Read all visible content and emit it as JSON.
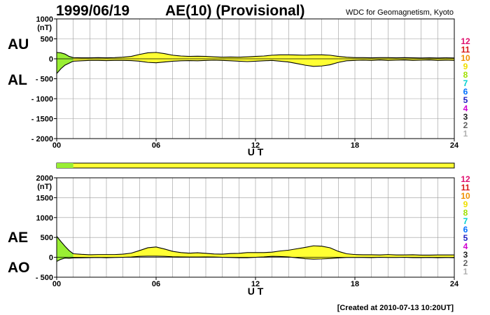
{
  "header": {
    "date": "1999/06/19",
    "title": "AE(10) (Provisional)",
    "organization": "WDC for Geomagnetism, Kyoto"
  },
  "footer": {
    "created": "[Created at 2010-07-13 10:20UT]"
  },
  "legend": {
    "numbers": [
      "12",
      "11",
      "10",
      "9",
      "8",
      "7",
      "6",
      "5",
      "4",
      "3",
      "2",
      "1"
    ],
    "colors": [
      "#e0106e",
      "#d81818",
      "#f09000",
      "#f0e000",
      "#a0e000",
      "#00d0d0",
      "#0070ff",
      "#2020c0",
      "#d000d0",
      "#202020",
      "#606060",
      "#b0b0b0"
    ]
  },
  "colors": {
    "fill": "#ffff33",
    "fill_early": "#99ee33",
    "station_bar": "#ffff33",
    "station_bar_early": "#99ee33",
    "grid": "#999999"
  },
  "station_bar": {
    "early_end_hour": 1
  },
  "chart_data": [
    {
      "type": "area",
      "name": "AU-AL",
      "unit": "(nT)",
      "labels": [
        "AU",
        "AL"
      ],
      "xlabel": "U T",
      "xlim": [
        0,
        24
      ],
      "ylim": [
        -2000,
        1000
      ],
      "yticks": [
        1000,
        500,
        0,
        -500,
        -1000,
        -1500,
        -2000
      ],
      "ytick_labels": [
        "1000",
        "500",
        "0",
        "- 500",
        "- 1000",
        "- 1500",
        "- 2000"
      ],
      "xticks": [
        0,
        6,
        12,
        18,
        24
      ],
      "xtick_labels": [
        "00",
        "06",
        "12",
        "18",
        "24"
      ],
      "grid": true,
      "x": [
        0,
        0.25,
        0.5,
        0.75,
        1,
        1.5,
        2,
        2.5,
        3,
        3.5,
        4,
        4.5,
        5,
        5.5,
        6,
        6.5,
        7,
        7.5,
        8,
        8.5,
        9,
        9.5,
        10,
        10.5,
        11,
        11.5,
        12,
        12.5,
        13,
        13.5,
        14,
        14.5,
        15,
        15.5,
        16,
        16.5,
        17,
        17.5,
        18,
        18.5,
        19,
        19.5,
        20,
        20.5,
        21,
        21.5,
        22,
        22.5,
        23,
        23.5,
        24
      ],
      "series": [
        {
          "name": "AU",
          "values": [
            160,
            150,
            120,
            60,
            30,
            25,
            25,
            30,
            25,
            30,
            40,
            60,
            110,
            150,
            160,
            130,
            90,
            70,
            60,
            65,
            60,
            50,
            40,
            45,
            40,
            50,
            60,
            70,
            90,
            100,
            100,
            95,
            90,
            100,
            100,
            90,
            60,
            40,
            30,
            30,
            25,
            30,
            30,
            25,
            30,
            25,
            20,
            25,
            20,
            25,
            20
          ]
        },
        {
          "name": "AL",
          "values": [
            -370,
            -250,
            -160,
            -110,
            -60,
            -50,
            -40,
            -40,
            -45,
            -40,
            -40,
            -45,
            -60,
            -90,
            -100,
            -80,
            -60,
            -50,
            -45,
            -50,
            -40,
            -35,
            -40,
            -50,
            -60,
            -70,
            -60,
            -50,
            -40,
            -60,
            -80,
            -120,
            -160,
            -190,
            -180,
            -150,
            -90,
            -50,
            -40,
            -35,
            -40,
            -30,
            -40,
            -35,
            -30,
            -40,
            -35,
            -30,
            -40,
            -35,
            -40
          ]
        }
      ]
    },
    {
      "type": "area",
      "name": "AE-AO",
      "unit": "(nT)",
      "labels": [
        "AE",
        "AO"
      ],
      "xlabel": "U T",
      "xlim": [
        0,
        24
      ],
      "ylim": [
        -500,
        2000
      ],
      "yticks": [
        2000,
        1500,
        1000,
        500,
        0,
        -500
      ],
      "ytick_labels": [
        "2000",
        "1500",
        "1000",
        "500",
        "0",
        "- 500"
      ],
      "xticks": [
        0,
        6,
        12,
        18,
        24
      ],
      "xtick_labels": [
        "00",
        "06",
        "12",
        "18",
        "24"
      ],
      "grid": true,
      "x": [
        0,
        0.25,
        0.5,
        0.75,
        1,
        1.5,
        2,
        2.5,
        3,
        3.5,
        4,
        4.5,
        5,
        5.5,
        6,
        6.5,
        7,
        7.5,
        8,
        8.5,
        9,
        9.5,
        10,
        10.5,
        11,
        11.5,
        12,
        12.5,
        13,
        13.5,
        14,
        14.5,
        15,
        15.5,
        16,
        16.5,
        17,
        17.5,
        18,
        18.5,
        19,
        19.5,
        20,
        20.5,
        21,
        21.5,
        22,
        22.5,
        23,
        23.5,
        24
      ],
      "series": [
        {
          "name": "AE",
          "values": [
            530,
            400,
            280,
            170,
            90,
            75,
            65,
            70,
            70,
            70,
            80,
            105,
            170,
            240,
            260,
            210,
            150,
            120,
            105,
            115,
            100,
            85,
            80,
            95,
            100,
            120,
            120,
            120,
            130,
            160,
            180,
            215,
            250,
            290,
            280,
            240,
            150,
            90,
            70,
            65,
            65,
            60,
            70,
            60,
            60,
            65,
            55,
            55,
            60,
            60,
            60
          ]
        },
        {
          "name": "AO",
          "values": [
            -105,
            -50,
            -20,
            -25,
            -15,
            -12,
            -8,
            -5,
            -10,
            -5,
            0,
            7,
            25,
            30,
            30,
            25,
            15,
            10,
            8,
            8,
            10,
            8,
            0,
            -3,
            -10,
            -10,
            0,
            10,
            25,
            20,
            10,
            -12,
            -35,
            -45,
            -40,
            -30,
            -15,
            -5,
            -5,
            -3,
            -8,
            0,
            -5,
            -5,
            0,
            -8,
            -8,
            -3,
            -10,
            -5,
            -10
          ]
        }
      ]
    }
  ]
}
